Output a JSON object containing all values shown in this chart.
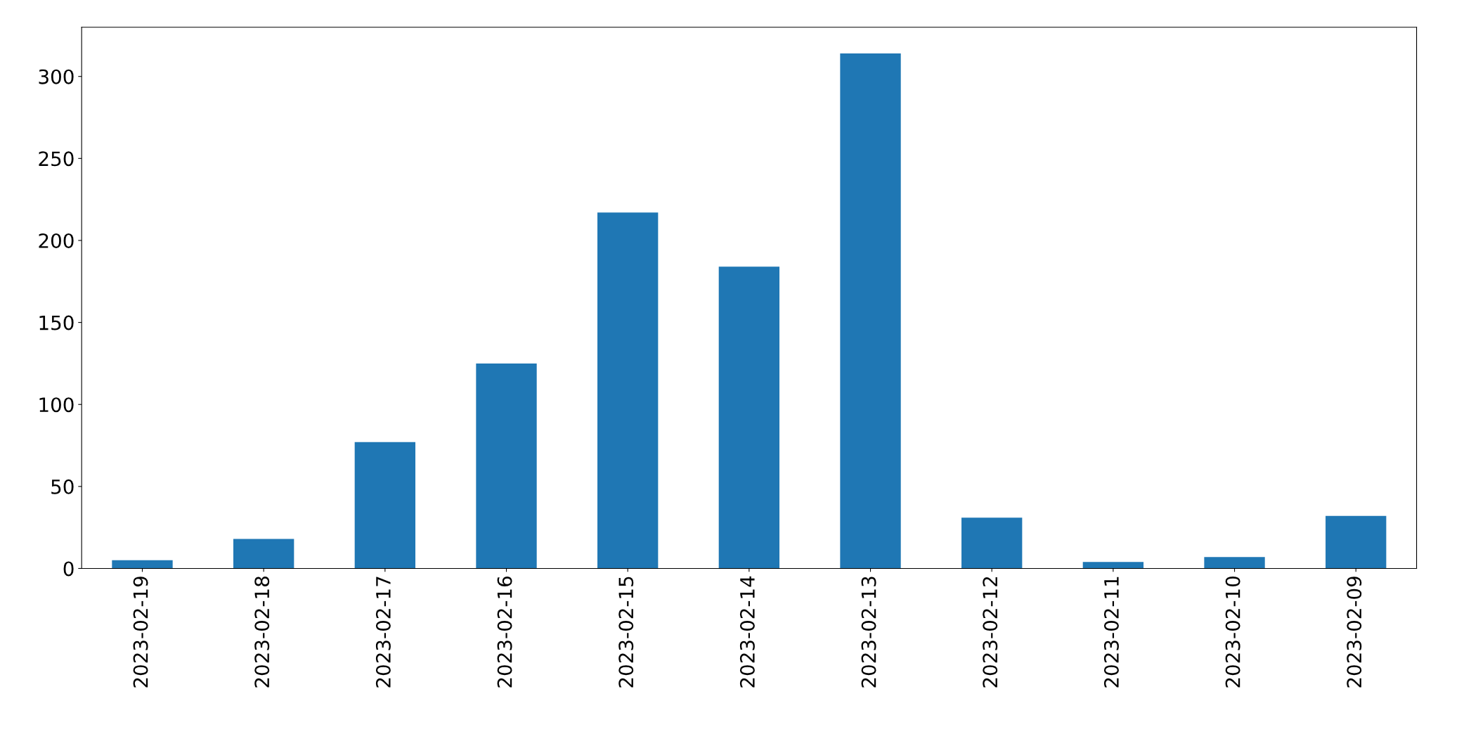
{
  "chart_data": {
    "type": "bar",
    "categories": [
      "2023-02-19",
      "2023-02-18",
      "2023-02-17",
      "2023-02-16",
      "2023-02-15",
      "2023-02-14",
      "2023-02-13",
      "2023-02-12",
      "2023-02-11",
      "2023-02-10",
      "2023-02-09"
    ],
    "values": [
      5,
      18,
      77,
      125,
      217,
      184,
      314,
      31,
      4,
      7,
      32
    ],
    "color": "#1f77b4",
    "ylim": [
      0,
      330
    ],
    "yticks": [
      0,
      50,
      100,
      150,
      200,
      250,
      300
    ],
    "grid": false
  }
}
